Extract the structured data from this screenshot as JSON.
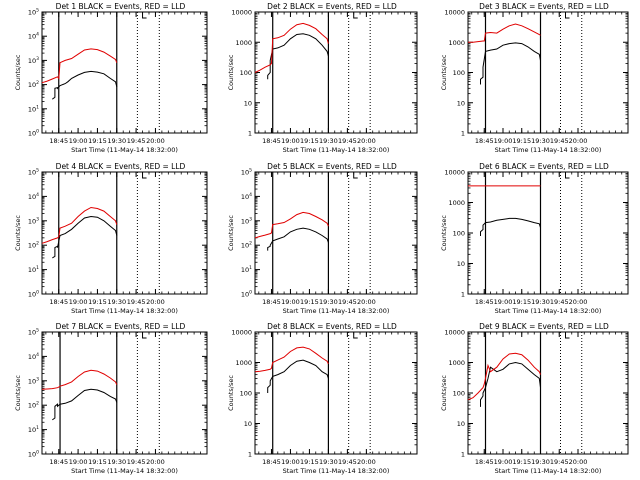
{
  "colors": {
    "events": "#000000",
    "lld": "#e00000",
    "axis": "#000000"
  },
  "chart_data": [
    {
      "type": "line",
      "title": "Det 1  BLACK = Events, RED = LLD",
      "xlabel": "Start Time (11-May-14 18:32:00)",
      "ylabel": "Counts/sec",
      "xlim": [
        "18:32",
        "20:40"
      ],
      "xticks": [
        "18:45",
        "19:00",
        "19:15",
        "19:30",
        "19:45",
        "20:00"
      ],
      "yscale": "log",
      "ylim": [
        1,
        100000
      ],
      "yticks": [
        "10^0",
        "10^1",
        "10^2",
        "10^3",
        "10^4",
        "10^5"
      ],
      "markers": {
        "solid": [
          "18:45",
          "19:30"
        ],
        "dotted": [
          "19:46",
          "20:03"
        ],
        "bracket": "19:50"
      },
      "series": [
        {
          "name": "Events",
          "x": [
            "18:40",
            "18:42",
            "18:42",
            "18:44",
            "18:44",
            "18:46",
            "18:48",
            "18:50",
            "18:52",
            "18:55",
            "19:00",
            "19:05",
            "19:10",
            "19:15",
            "19:20",
            "19:25",
            "19:29",
            "19:30"
          ],
          "y": [
            25,
            30,
            70,
            75,
            70,
            90,
            100,
            110,
            130,
            180,
            250,
            320,
            350,
            330,
            280,
            180,
            130,
            80
          ]
        },
        {
          "name": "LLD",
          "x": [
            "18:32",
            "18:36",
            "18:40",
            "18:44",
            "18:45",
            "18:46",
            "18:50",
            "18:55",
            "19:00",
            "19:05",
            "19:10",
            "19:15",
            "19:20",
            "19:25",
            "19:29",
            "19:30"
          ],
          "y": [
            120,
            140,
            170,
            210,
            180,
            800,
            1000,
            1200,
            1800,
            2700,
            3000,
            2800,
            2200,
            1500,
            1100,
            800
          ]
        }
      ]
    },
    {
      "type": "line",
      "title": "Det 2  BLACK = Events, RED = LLD",
      "xlabel": "Start Time (11-May-14 18:32:00)",
      "ylabel": "Counts/sec",
      "xlim": [
        "18:32",
        "20:40"
      ],
      "xticks": [
        "18:45",
        "19:00",
        "19:15",
        "19:30",
        "19:45",
        "20:00"
      ],
      "yscale": "log",
      "ylim": [
        1,
        10000
      ],
      "yticks": [
        "1",
        "10",
        "100",
        "1000",
        "10000"
      ],
      "markers": {
        "solid": [
          "18:46",
          "19:30"
        ],
        "dotted": [
          "19:46",
          "20:03"
        ],
        "bracket": "19:50"
      },
      "series": [
        {
          "name": "Events",
          "x": [
            "18:42",
            "18:42",
            "18:44",
            "18:44",
            "18:46",
            "18:50",
            "18:55",
            "19:00",
            "19:05",
            "19:10",
            "19:15",
            "19:20",
            "19:25",
            "19:29",
            "19:30"
          ],
          "y": [
            60,
            80,
            100,
            250,
            600,
            650,
            800,
            1300,
            1800,
            1900,
            1700,
            1300,
            800,
            500,
            350
          ]
        },
        {
          "name": "LLD",
          "x": [
            "18:32",
            "18:36",
            "18:40",
            "18:44",
            "18:45",
            "18:46",
            "18:50",
            "18:55",
            "19:00",
            "19:05",
            "19:10",
            "19:15",
            "19:20",
            "19:25",
            "19:29",
            "19:30"
          ],
          "y": [
            100,
            120,
            150,
            180,
            200,
            1300,
            1400,
            1700,
            2700,
            3800,
            4200,
            3600,
            2800,
            1800,
            1300,
            900
          ]
        }
      ]
    },
    {
      "type": "line",
      "title": "Det 3  BLACK = Events, RED = LLD",
      "xlabel": "Start Time (11-May-14 18:32:00)",
      "ylabel": "Counts/sec",
      "xlim": [
        "18:32",
        "20:40"
      ],
      "xticks": [
        "18:45",
        "19:00",
        "19:15",
        "19:30",
        "19:45",
        "20:00"
      ],
      "yscale": "log",
      "ylim": [
        1,
        10000
      ],
      "yticks": [
        "1",
        "10",
        "100",
        "1000",
        "10000"
      ],
      "markers": {
        "solid": [
          "18:46",
          "19:30"
        ],
        "dotted": [
          "19:46",
          "20:03"
        ],
        "bracket": "19:50"
      },
      "series": [
        {
          "name": "Events",
          "x": [
            "18:42",
            "18:42",
            "18:44",
            "18:44",
            "18:46",
            "18:50",
            "18:55",
            "19:00",
            "19:05",
            "19:10",
            "19:15",
            "19:20",
            "19:25",
            "19:29",
            "19:30"
          ],
          "y": [
            40,
            60,
            70,
            150,
            500,
            550,
            600,
            800,
            900,
            950,
            900,
            700,
            500,
            400,
            250
          ]
        },
        {
          "name": "LLD",
          "x": [
            "18:32",
            "18:36",
            "18:40",
            "18:44",
            "18:45",
            "18:46",
            "18:50",
            "18:55",
            "19:00",
            "19:05",
            "19:10",
            "19:15",
            "19:20",
            "19:25",
            "19:29",
            "19:30"
          ],
          "y": [
            1000,
            1000,
            1050,
            1100,
            1100,
            2000,
            2100,
            2000,
            2700,
            3500,
            4000,
            3500,
            2800,
            2200,
            1800,
            1700
          ]
        }
      ]
    },
    {
      "type": "line",
      "title": "Det 4  BLACK = Events, RED = LLD",
      "xlabel": "Start Time (11-May-14 18:32:00)",
      "ylabel": "Counts/sec",
      "xlim": [
        "18:32",
        "20:40"
      ],
      "xticks": [
        "18:45",
        "19:00",
        "19:15",
        "19:30",
        "19:45",
        "20:00"
      ],
      "yscale": "log",
      "ylim": [
        1,
        100000
      ],
      "yticks": [
        "10^0",
        "10^1",
        "10^2",
        "10^3",
        "10^4",
        "10^5"
      ],
      "markers": {
        "solid": [
          "18:45",
          "19:30"
        ],
        "dotted": [
          "19:46",
          "20:03"
        ],
        "bracket": "19:50"
      },
      "series": [
        {
          "name": "Events",
          "x": [
            "18:40",
            "18:42",
            "18:42",
            "18:44",
            "18:44",
            "18:46",
            "18:50",
            "18:55",
            "19:00",
            "19:05",
            "19:10",
            "19:15",
            "19:20",
            "19:25",
            "19:29",
            "19:30"
          ],
          "y": [
            30,
            35,
            80,
            90,
            80,
            250,
            300,
            450,
            800,
            1300,
            1500,
            1400,
            1000,
            600,
            400,
            250
          ]
        },
        {
          "name": "LLD",
          "x": [
            "18:32",
            "18:36",
            "18:40",
            "18:44",
            "18:45",
            "18:46",
            "18:50",
            "18:55",
            "19:00",
            "19:05",
            "19:10",
            "19:15",
            "19:20",
            "19:25",
            "19:29",
            "19:30"
          ],
          "y": [
            120,
            140,
            170,
            200,
            220,
            500,
            600,
            800,
            1500,
            2500,
            3500,
            3200,
            2500,
            1500,
            1000,
            700
          ]
        }
      ]
    },
    {
      "type": "line",
      "title": "Det 5  BLACK = Events, RED = LLD",
      "xlabel": "Start Time (11-May-14 18:32:00)",
      "ylabel": "Counts/sec",
      "xlim": [
        "18:32",
        "20:40"
      ],
      "xticks": [
        "18:45",
        "19:00",
        "19:15",
        "19:30",
        "19:45",
        "20:00"
      ],
      "yscale": "log",
      "ylim": [
        1,
        100000
      ],
      "yticks": [
        "10^0",
        "10^1",
        "10^2",
        "10^3",
        "10^4",
        "10^5"
      ],
      "markers": {
        "solid": [
          "18:46",
          "19:30"
        ],
        "dotted": [
          "19:46",
          "20:03"
        ],
        "bracket": "19:50"
      },
      "series": [
        {
          "name": "Events",
          "x": [
            "18:42",
            "18:42",
            "18:44",
            "18:44",
            "18:46",
            "18:50",
            "18:55",
            "19:00",
            "19:05",
            "19:10",
            "19:15",
            "19:20",
            "19:25",
            "19:29",
            "19:30"
          ],
          "y": [
            60,
            80,
            90,
            100,
            150,
            180,
            220,
            350,
            450,
            500,
            450,
            350,
            250,
            180,
            130
          ]
        },
        {
          "name": "LLD",
          "x": [
            "18:32",
            "18:36",
            "18:40",
            "18:44",
            "18:45",
            "18:46",
            "18:50",
            "18:55",
            "19:00",
            "19:05",
            "19:10",
            "19:15",
            "19:20",
            "19:25",
            "19:29",
            "19:30"
          ],
          "y": [
            200,
            230,
            260,
            300,
            320,
            700,
            750,
            850,
            1200,
            1800,
            2200,
            2000,
            1500,
            1100,
            800,
            600
          ]
        }
      ]
    },
    {
      "type": "line",
      "title": "Det 6  BLACK = Events, RED = LLD",
      "xlabel": "Start Time (11-May-14 18:32:00)",
      "ylabel": "Counts/sec",
      "xlim": [
        "18:32",
        "20:40"
      ],
      "xticks": [
        "18:45",
        "19:00",
        "19:15",
        "19:30",
        "19:45",
        "20:00"
      ],
      "yscale": "log",
      "ylim": [
        1,
        10000
      ],
      "yticks": [
        "1",
        "10",
        "100",
        "1000",
        "10000"
      ],
      "markers": {
        "solid": [
          "18:46",
          "19:30"
        ],
        "dotted": [
          "19:46",
          "20:03"
        ],
        "bracket": "19:50"
      },
      "series": [
        {
          "name": "Events",
          "x": [
            "18:42",
            "18:42",
            "18:44",
            "18:44",
            "18:46",
            "18:50",
            "18:55",
            "19:00",
            "19:05",
            "19:10",
            "19:15",
            "19:20",
            "19:25",
            "19:29",
            "19:30"
          ],
          "y": [
            80,
            110,
            130,
            180,
            220,
            230,
            260,
            280,
            300,
            300,
            280,
            250,
            220,
            200,
            150
          ]
        },
        {
          "name": "LLD",
          "x": [
            "18:32",
            "19:30"
          ],
          "y": [
            3500,
            3500
          ]
        }
      ]
    },
    {
      "type": "line",
      "title": "Det 7  BLACK = Events, RED = LLD",
      "xlabel": "Start Time (11-May-14 18:32:00)",
      "ylabel": "Counts/sec",
      "xlim": [
        "18:32",
        "20:40"
      ],
      "xticks": [
        "18:45",
        "19:00",
        "19:15",
        "19:30",
        "19:45",
        "20:00"
      ],
      "yscale": "log",
      "ylim": [
        1,
        100000
      ],
      "yticks": [
        "10^0",
        "10^1",
        "10^2",
        "10^3",
        "10^4",
        "10^5"
      ],
      "markers": {
        "solid": [
          "18:46",
          "19:30"
        ],
        "dotted": [
          "19:46",
          "20:03"
        ],
        "bracket": "19:50"
      },
      "series": [
        {
          "name": "Events",
          "x": [
            "18:40",
            "18:42",
            "18:42",
            "18:44",
            "18:44",
            "18:46",
            "18:50",
            "18:55",
            "19:00",
            "19:05",
            "19:10",
            "19:15",
            "19:20",
            "19:25",
            "19:29",
            "19:30"
          ],
          "y": [
            25,
            30,
            90,
            110,
            90,
            110,
            120,
            150,
            250,
            400,
            450,
            420,
            330,
            230,
            180,
            130
          ]
        },
        {
          "name": "LLD",
          "x": [
            "18:32",
            "18:36",
            "18:40",
            "18:44",
            "18:45",
            "18:46",
            "18:50",
            "18:55",
            "19:00",
            "19:05",
            "19:10",
            "19:15",
            "19:20",
            "19:25",
            "19:29",
            "19:30"
          ],
          "y": [
            450,
            460,
            480,
            520,
            550,
            600,
            700,
            900,
            1500,
            2300,
            2700,
            2500,
            1900,
            1300,
            900,
            700
          ]
        }
      ]
    },
    {
      "type": "line",
      "title": "Det 8  BLACK = Events, RED = LLD",
      "xlabel": "Start Time (11-May-14 18:32:00)",
      "ylabel": "Counts/sec",
      "xlim": [
        "18:32",
        "20:40"
      ],
      "xticks": [
        "18:45",
        "19:00",
        "19:15",
        "19:30",
        "19:45",
        "20:00"
      ],
      "yscale": "log",
      "ylim": [
        1,
        10000
      ],
      "yticks": [
        "1",
        "10",
        "100",
        "1000",
        "10000"
      ],
      "markers": {
        "solid": [
          "18:46",
          "19:30"
        ],
        "dotted": [
          "19:46",
          "20:03"
        ],
        "bracket": "19:50"
      },
      "series": [
        {
          "name": "Events",
          "x": [
            "18:42",
            "18:42",
            "18:44",
            "18:44",
            "18:46",
            "18:50",
            "18:55",
            "19:00",
            "19:05",
            "19:10",
            "19:15",
            "19:20",
            "19:25",
            "19:29",
            "19:30"
          ],
          "y": [
            100,
            150,
            180,
            250,
            350,
            400,
            500,
            800,
            1100,
            1200,
            1000,
            800,
            500,
            400,
            300
          ]
        },
        {
          "name": "LLD",
          "x": [
            "18:32",
            "18:36",
            "18:40",
            "18:44",
            "18:45",
            "18:46",
            "18:50",
            "18:55",
            "19:00",
            "19:05",
            "19:10",
            "19:15",
            "19:20",
            "19:25",
            "19:29",
            "19:30"
          ],
          "y": [
            500,
            520,
            550,
            600,
            650,
            1000,
            1200,
            1500,
            2300,
            3000,
            3200,
            2800,
            2000,
            1400,
            1100,
            900
          ]
        }
      ]
    },
    {
      "type": "line",
      "title": "Det 9  BLACK = Events, RED = LLD",
      "xlabel": "Start Time (11-May-14 18:32:00)",
      "ylabel": "Counts/sec",
      "xlim": [
        "18:32",
        "20:40"
      ],
      "xticks": [
        "18:45",
        "19:00",
        "19:15",
        "19:30",
        "19:45",
        "20:00"
      ],
      "yscale": "log",
      "ylim": [
        1,
        10000
      ],
      "yticks": [
        "1",
        "10",
        "100",
        "1000",
        "10000"
      ],
      "markers": {
        "solid": [
          "18:46",
          "19:30"
        ],
        "dotted": [
          "19:46",
          "20:03"
        ],
        "bracket": "19:50"
      },
      "series": [
        {
          "name": "Events",
          "x": [
            "18:42",
            "18:42",
            "18:44",
            "18:44",
            "18:46",
            "18:48",
            "18:50",
            "18:55",
            "19:00",
            "19:05",
            "19:10",
            "19:15",
            "19:20",
            "19:25",
            "19:29",
            "19:30"
          ],
          "y": [
            35,
            60,
            80,
            100,
            150,
            300,
            700,
            500,
            600,
            900,
            1000,
            900,
            600,
            400,
            300,
            150
          ]
        },
        {
          "name": "LLD",
          "x": [
            "18:32",
            "18:36",
            "18:40",
            "18:44",
            "18:45",
            "18:46",
            "18:48",
            "18:50",
            "18:55",
            "19:00",
            "19:05",
            "19:10",
            "19:15",
            "19:20",
            "19:25",
            "19:29",
            "19:30"
          ],
          "y": [
            60,
            70,
            100,
            150,
            200,
            300,
            800,
            500,
            700,
            1300,
            1900,
            2000,
            1800,
            1200,
            700,
            500,
            400
          ]
        }
      ]
    }
  ]
}
